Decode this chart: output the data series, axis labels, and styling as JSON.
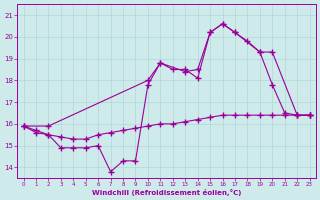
{
  "xlabel": "Windchill (Refroidissement éolien,°C)",
  "xlim": [
    -0.5,
    23.5
  ],
  "ylim": [
    13.5,
    21.5
  ],
  "yticks": [
    14,
    15,
    16,
    17,
    18,
    19,
    20,
    21
  ],
  "xticks": [
    0,
    1,
    2,
    3,
    4,
    5,
    6,
    7,
    8,
    9,
    10,
    11,
    12,
    13,
    14,
    15,
    16,
    17,
    18,
    19,
    20,
    21,
    22,
    23
  ],
  "bg_color": "#ceeaea",
  "line_color": "#990099",
  "grid_color": "#b0d8d8",
  "line1_x": [
    0,
    1,
    2,
    3,
    4,
    5,
    6,
    7,
    8,
    9,
    10,
    11,
    12,
    13,
    14,
    15,
    16,
    17,
    18,
    19,
    20,
    21,
    22,
    23
  ],
  "line1_y": [
    15.9,
    15.7,
    15.5,
    15.4,
    15.3,
    15.3,
    15.5,
    15.6,
    15.7,
    15.8,
    15.9,
    16.0,
    16.0,
    16.1,
    16.2,
    16.3,
    16.4,
    16.4,
    16.4,
    16.4,
    16.4,
    16.4,
    16.4,
    16.4
  ],
  "line2_x": [
    0,
    1,
    2,
    3,
    4,
    5,
    6,
    7,
    8,
    9,
    10,
    11,
    12,
    13,
    14,
    15,
    16,
    17,
    18,
    19,
    20,
    21,
    22,
    23
  ],
  "line2_y": [
    15.9,
    15.6,
    15.5,
    14.9,
    14.9,
    14.9,
    15.0,
    13.8,
    14.3,
    14.3,
    17.8,
    18.8,
    18.5,
    18.5,
    18.1,
    20.2,
    20.6,
    20.2,
    19.8,
    19.3,
    17.8,
    16.5,
    16.4,
    16.4
  ],
  "line3_x": [
    0,
    2,
    10,
    11,
    13,
    14,
    15,
    16,
    17,
    19,
    20,
    22,
    23
  ],
  "line3_y": [
    15.9,
    15.9,
    18.0,
    18.8,
    18.4,
    18.5,
    20.2,
    20.6,
    20.2,
    19.3,
    19.3,
    16.4,
    16.4
  ]
}
